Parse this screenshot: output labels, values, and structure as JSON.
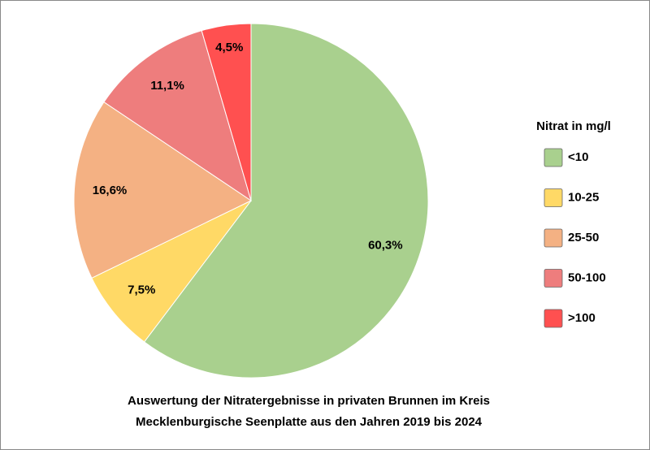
{
  "chart_data": {
    "type": "pie",
    "title": [
      "Auswertung der Nitratergebnisse in privaten Brunnen im Kreis",
      "Mecklenburgische Seenplatte aus den Jahren 2019 bis 2024"
    ],
    "legend_title": "Nitrat in mg/l",
    "legend": "right",
    "categories": [
      "<10",
      "10-25",
      "25-50",
      "50-100",
      ">100"
    ],
    "values": [
      60.3,
      7.5,
      16.6,
      11.1,
      4.5
    ],
    "value_labels": [
      "60,3%",
      "7,5%",
      "16,6%",
      "11,1%",
      "4,5%"
    ],
    "colors": [
      "#a9d08e",
      "#ffd966",
      "#f4b183",
      "#ee7d7d",
      "#ff5050"
    ]
  }
}
